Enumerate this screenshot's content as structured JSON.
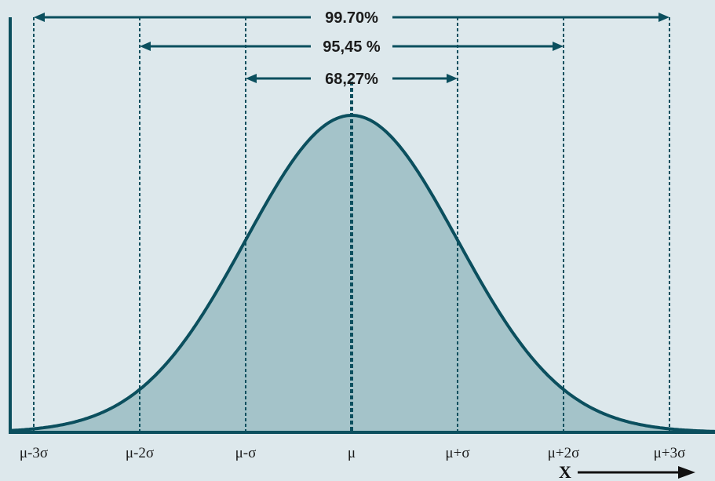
{
  "chart_data": {
    "type": "area",
    "title": "",
    "xlabel": "X",
    "ylabel": "",
    "grid": false,
    "legend": "none",
    "mean": 0,
    "sd": 1,
    "xlim": [
      -3.2,
      3.2
    ],
    "ticks": [
      {
        "x": -3,
        "label": "μ-3σ"
      },
      {
        "x": -2,
        "label": "μ-2σ"
      },
      {
        "x": -1,
        "label": "μ-σ"
      },
      {
        "x": 0,
        "label": "μ"
      },
      {
        "x": 1,
        "label": "μ+σ"
      },
      {
        "x": 2,
        "label": "μ+2σ"
      },
      {
        "x": 3,
        "label": "μ+3σ"
      }
    ],
    "intervals": [
      {
        "from": -3,
        "to": 3,
        "label": "99.70%"
      },
      {
        "from": -2,
        "to": 2,
        "label": "95,45 %"
      },
      {
        "from": -1,
        "to": 1,
        "label": "68,27%"
      }
    ],
    "curve_color": "#0b4f5e",
    "fill_color": "#a4c3c9",
    "guide_color": "#0b4f5e",
    "background_color": "#dde8ec"
  }
}
